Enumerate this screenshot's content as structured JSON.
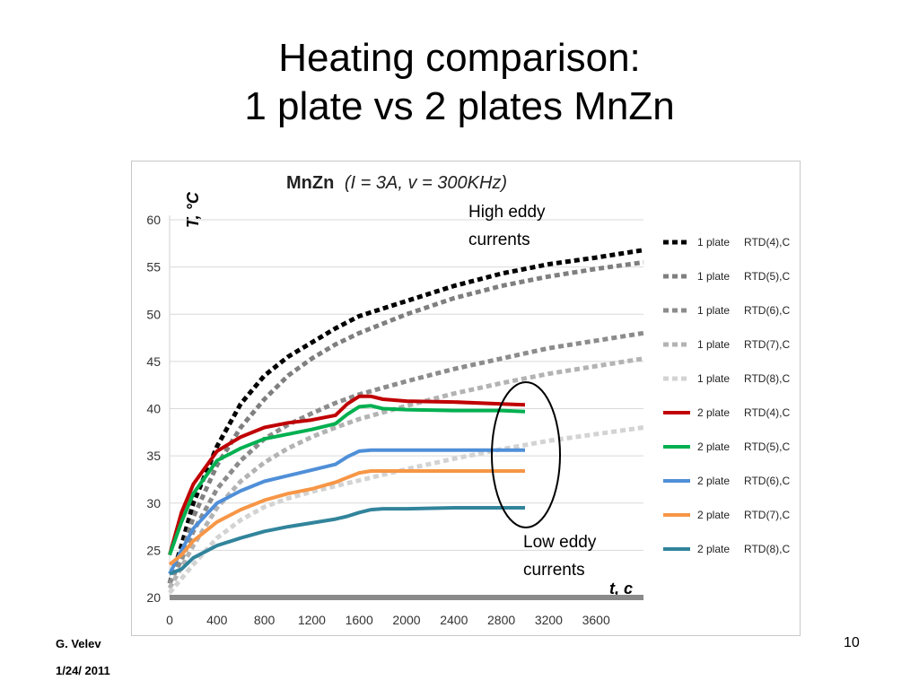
{
  "slide": {
    "title_line1": "Heating comparison:",
    "title_line2": "1 plate vs 2 plates MnZn",
    "author": "G. Velev",
    "date": "1/24/ 2011",
    "page_number": "10"
  },
  "chart_data": {
    "type": "line",
    "title": "MnZn",
    "title_params": "(I = 3A, v = 300KHz)",
    "xlabel": "t, c",
    "ylabel": "T, °C",
    "xlim": [
      0,
      4000
    ],
    "ylim": [
      20,
      60
    ],
    "xticks": [
      0,
      400,
      800,
      1200,
      1600,
      2000,
      2400,
      2800,
      3200,
      3600
    ],
    "yticks": [
      20,
      25,
      30,
      35,
      40,
      45,
      50,
      55,
      60
    ],
    "grid": true,
    "legend_position": "right",
    "annotations": [
      {
        "text_line1": "High eddy",
        "text_line2": "currents"
      },
      {
        "text_line1": "Low eddy",
        "text_line2": "currents"
      }
    ],
    "series": [
      {
        "plates": "1 plate",
        "name": "RTD(4),C",
        "style": "dashed",
        "color": "#000000",
        "x": [
          0,
          100,
          200,
          400,
          600,
          800,
          1000,
          1200,
          1400,
          1600,
          1800,
          2000,
          2400,
          2800,
          3200,
          3600,
          4000
        ],
        "y": [
          21.5,
          25.5,
          30,
          36,
          40.5,
          43.5,
          45.5,
          47,
          48.5,
          49.8,
          50.6,
          51.4,
          53,
          54.3,
          55.3,
          56,
          56.8
        ]
      },
      {
        "plates": "1 plate",
        "name": "RTD(5),C",
        "style": "dashed",
        "color": "#7f7f7f",
        "x": [
          0,
          100,
          200,
          400,
          600,
          800,
          1000,
          1200,
          1400,
          1600,
          1800,
          2000,
          2400,
          2800,
          3200,
          3600,
          4000
        ],
        "y": [
          21.5,
          24.5,
          28.5,
          34,
          38,
          41,
          43.5,
          45.3,
          46.8,
          48,
          49,
          50,
          51.7,
          53,
          54,
          54.8,
          55.5
        ]
      },
      {
        "plates": "1 plate",
        "name": "RTD(6),C",
        "style": "dashed",
        "color": "#8c8c8c",
        "x": [
          0,
          100,
          200,
          400,
          600,
          800,
          1000,
          1200,
          1400,
          1600,
          1800,
          2000,
          2400,
          2800,
          3200,
          3600,
          4000
        ],
        "y": [
          21.5,
          24,
          27,
          31.5,
          34.5,
          36.8,
          38.3,
          39.5,
          40.6,
          41.5,
          42.2,
          42.9,
          44.2,
          45.3,
          46.4,
          47.2,
          48
        ]
      },
      {
        "plates": "1 plate",
        "name": "RTD(7),C",
        "style": "dashed",
        "color": "#b3b3b3",
        "x": [
          0,
          100,
          200,
          400,
          600,
          800,
          1000,
          1200,
          1400,
          1600,
          1800,
          2000,
          2400,
          2800,
          3200,
          3600,
          4000
        ],
        "y": [
          21,
          23.2,
          25.5,
          29.5,
          32.3,
          34.3,
          35.8,
          37,
          38,
          38.9,
          39.6,
          40.3,
          41.6,
          42.7,
          43.7,
          44.5,
          45.3
        ]
      },
      {
        "plates": "1 plate",
        "name": "RTD(8),C",
        "style": "dashed",
        "color": "#d3d3d3",
        "x": [
          0,
          100,
          200,
          400,
          600,
          800,
          1000,
          1200,
          1400,
          1600,
          1800,
          2000,
          2400,
          2800,
          3200,
          3600,
          4000
        ],
        "y": [
          20.5,
          22,
          23.5,
          26.3,
          28.2,
          29.6,
          30.5,
          31.2,
          31.8,
          32.4,
          33,
          33.6,
          34.7,
          35.7,
          36.6,
          37.3,
          38
        ]
      },
      {
        "plates": "2 plate",
        "name": "RTD(4),C",
        "style": "solid",
        "color": "#c00000",
        "x": [
          0,
          100,
          200,
          400,
          600,
          800,
          1000,
          1200,
          1400,
          1500,
          1600,
          1700,
          1800,
          2000,
          2400,
          2800,
          3000
        ],
        "y": [
          24.5,
          29,
          32,
          35.5,
          37,
          38,
          38.5,
          38.8,
          39.3,
          40.5,
          41.3,
          41.3,
          41,
          40.8,
          40.7,
          40.5,
          40.4
        ]
      },
      {
        "plates": "2 plate",
        "name": "RTD(5),C",
        "style": "solid",
        "color": "#00b050",
        "x": [
          0,
          100,
          200,
          400,
          600,
          800,
          1000,
          1200,
          1400,
          1500,
          1600,
          1700,
          1800,
          2000,
          2400,
          2800,
          3000
        ],
        "y": [
          24.5,
          28,
          31,
          34.5,
          35.8,
          36.8,
          37.3,
          37.8,
          38.4,
          39.4,
          40.2,
          40.3,
          40,
          39.9,
          39.8,
          39.8,
          39.7
        ]
      },
      {
        "plates": "2 plate",
        "name": "RTD(6),C",
        "style": "solid",
        "color": "#4f8fd8",
        "x": [
          0,
          100,
          200,
          400,
          600,
          800,
          1000,
          1200,
          1400,
          1500,
          1600,
          1700,
          1800,
          2000,
          2400,
          2800,
          3000
        ],
        "y": [
          22.5,
          25,
          27.3,
          30,
          31.3,
          32.3,
          32.9,
          33.5,
          34.1,
          34.9,
          35.5,
          35.6,
          35.6,
          35.6,
          35.6,
          35.6,
          35.6
        ]
      },
      {
        "plates": "2 plate",
        "name": "RTD(7),C",
        "style": "solid",
        "color": "#f79646",
        "x": [
          0,
          100,
          200,
          400,
          600,
          800,
          1000,
          1200,
          1400,
          1500,
          1600,
          1700,
          1800,
          2000,
          2400,
          2800,
          3000
        ],
        "y": [
          23.5,
          24.5,
          26,
          28,
          29.3,
          30.3,
          31,
          31.5,
          32.2,
          32.7,
          33.2,
          33.4,
          33.4,
          33.4,
          33.4,
          33.4,
          33.4
        ]
      },
      {
        "plates": "2 plate",
        "name": "RTD(8),C",
        "style": "solid",
        "color": "#31849b",
        "x": [
          0,
          100,
          200,
          400,
          600,
          800,
          1000,
          1200,
          1400,
          1500,
          1600,
          1700,
          1800,
          2000,
          2400,
          2800,
          3000
        ],
        "y": [
          22.5,
          23,
          24.2,
          25.5,
          26.3,
          27,
          27.5,
          27.9,
          28.3,
          28.6,
          29,
          29.3,
          29.4,
          29.4,
          29.5,
          29.5,
          29.5
        ]
      }
    ]
  }
}
